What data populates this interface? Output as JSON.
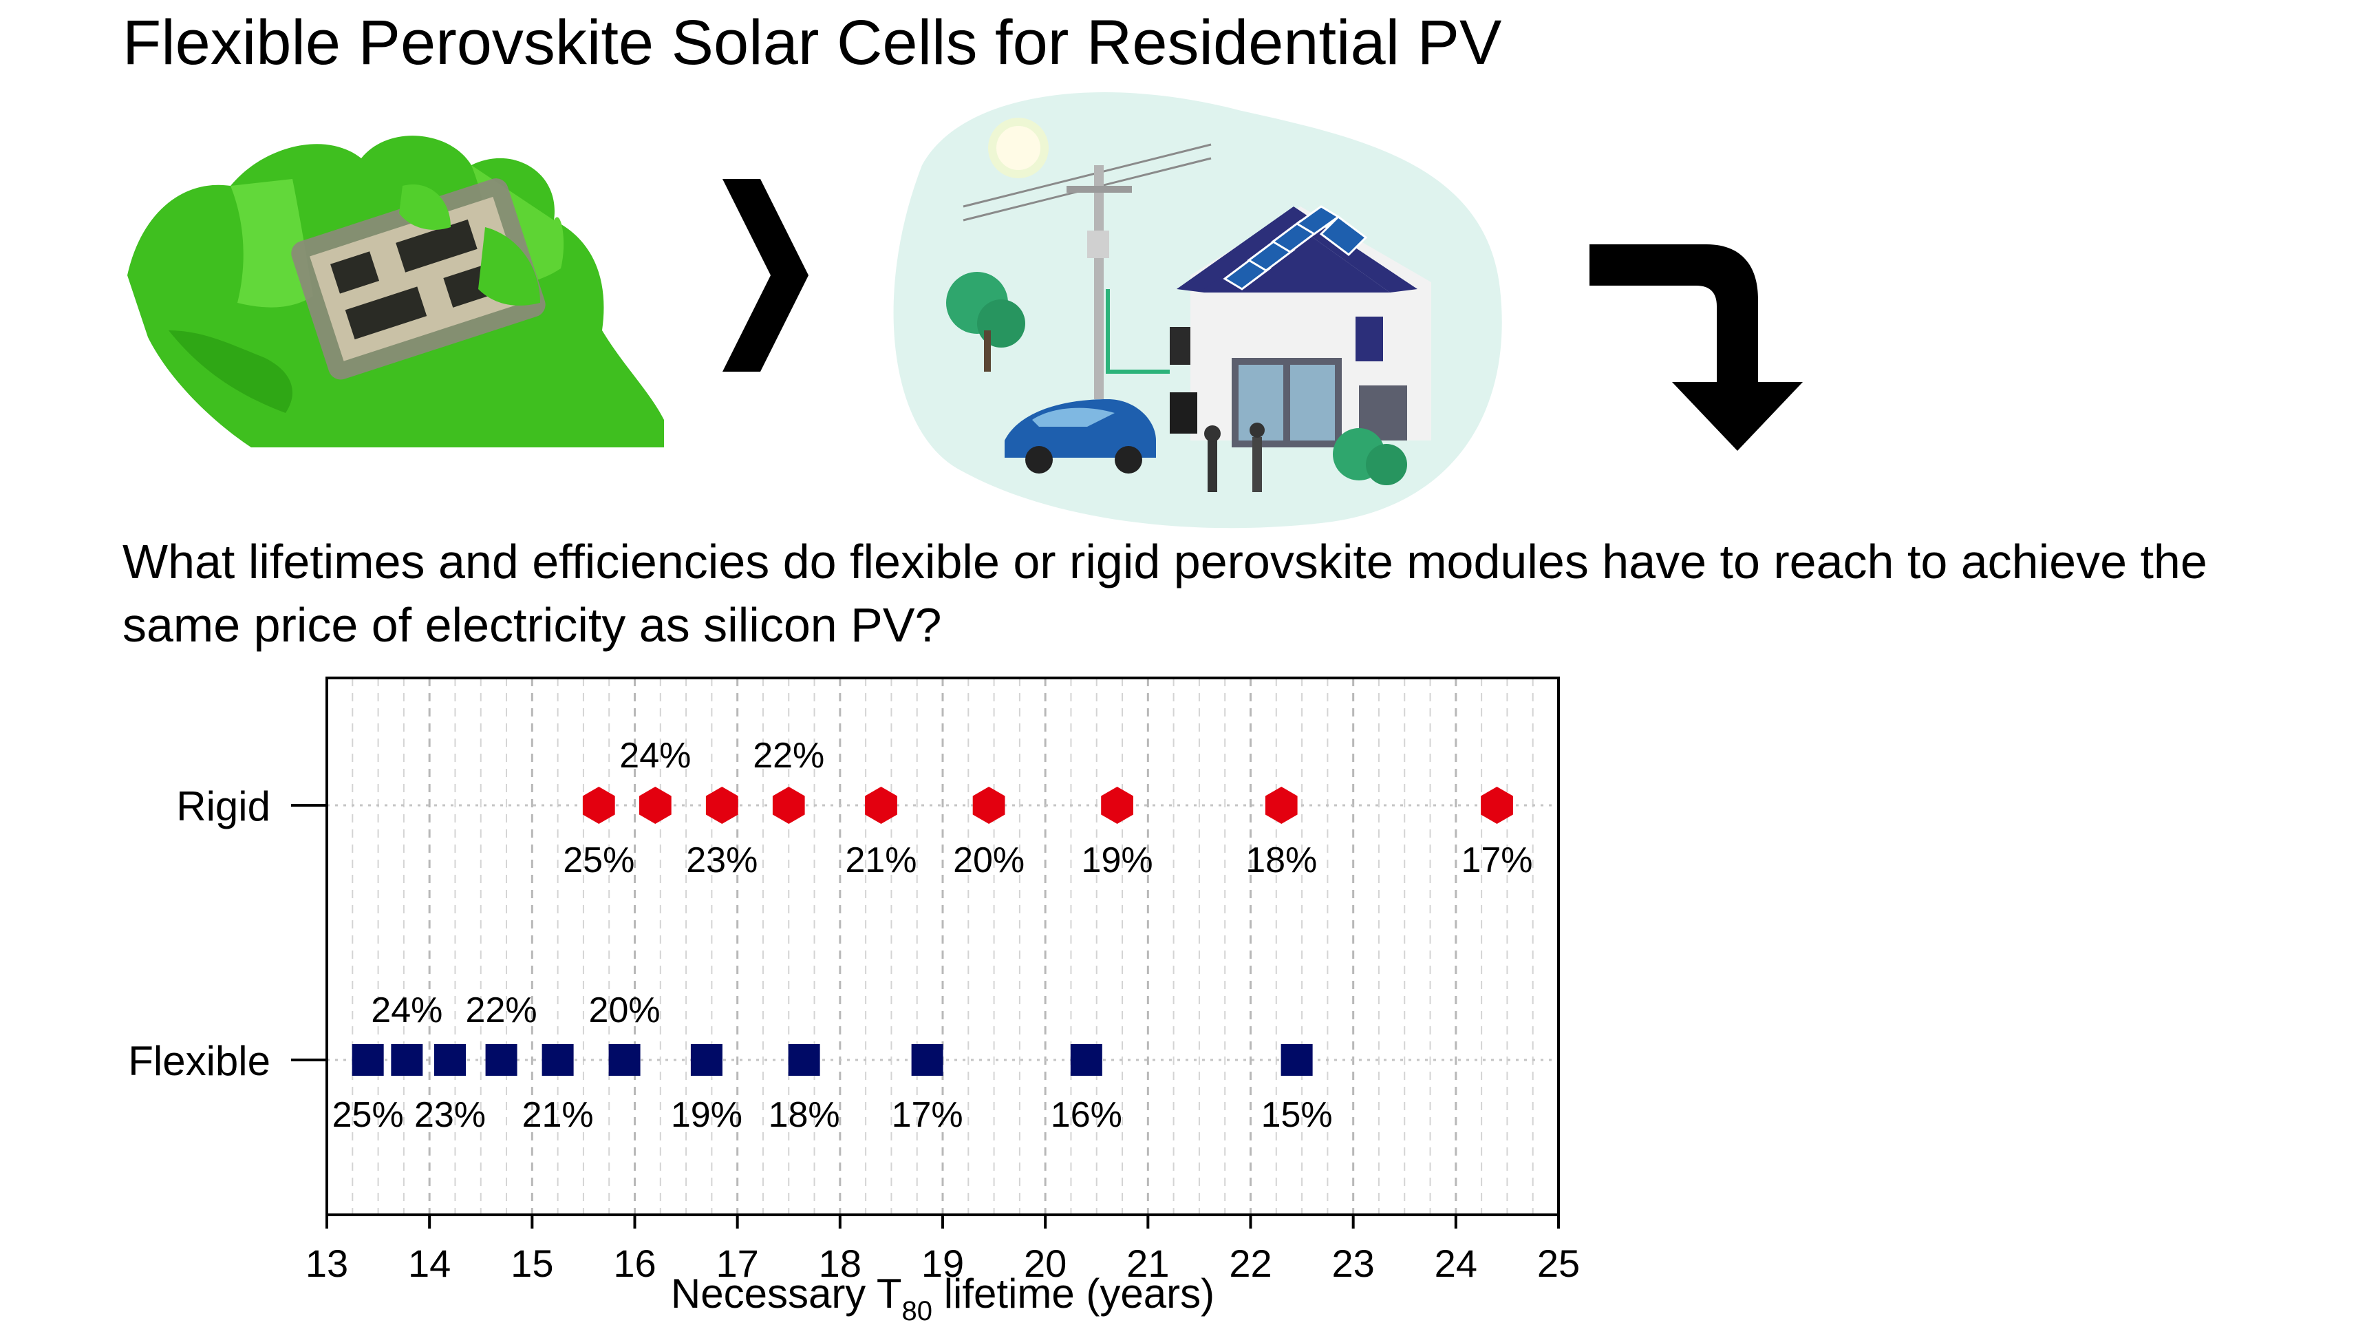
{
  "title": "Flexible Perovskite Solar Cells for Residential PV",
  "question": "What lifetimes and efficiencies do flexible or rigid perovskite modules have to reach to achieve the same price of electricity as silicon PV?",
  "illustrations": [
    {
      "name": "flexible-cell-in-glove",
      "colors": [
        "#3fbf1f",
        "#7ae04a"
      ]
    },
    {
      "name": "chevron-right-icon"
    },
    {
      "name": "house-with-solar-roof",
      "colors": [
        "#dff3ee",
        "#2c2f7a",
        "#1e5fae"
      ]
    },
    {
      "name": "turn-down-arrow-icon"
    }
  ],
  "chart_data": {
    "type": "scatter",
    "xlabel_parts": [
      "Necessary T",
      "80",
      " lifetime (years)"
    ],
    "xlim": [
      13,
      25
    ],
    "x_ticks": [
      "13",
      "14",
      "15",
      "16",
      "17",
      "18",
      "19",
      "20",
      "21",
      "22",
      "23",
      "24",
      "25"
    ],
    "categories": [
      "Rigid",
      "Flexible"
    ],
    "grid": true,
    "series": [
      {
        "name": "Rigid",
        "marker": "hexagon",
        "color": "#e3000f",
        "points": [
          {
            "x": 15.65,
            "label": "25%",
            "label_pos": "below"
          },
          {
            "x": 16.2,
            "label": "24%",
            "label_pos": "above"
          },
          {
            "x": 16.85,
            "label": "23%",
            "label_pos": "below"
          },
          {
            "x": 17.5,
            "label": "22%",
            "label_pos": "above"
          },
          {
            "x": 18.4,
            "label": "21%",
            "label_pos": "below"
          },
          {
            "x": 19.45,
            "label": "20%",
            "label_pos": "below"
          },
          {
            "x": 20.7,
            "label": "19%",
            "label_pos": "below"
          },
          {
            "x": 22.3,
            "label": "18%",
            "label_pos": "below"
          },
          {
            "x": 24.4,
            "label": "17%",
            "label_pos": "below"
          }
        ]
      },
      {
        "name": "Flexible",
        "marker": "square",
        "color": "#000a66",
        "points": [
          {
            "x": 13.4,
            "label": "25%",
            "label_pos": "below"
          },
          {
            "x": 13.78,
            "label": "24%",
            "label_pos": "above"
          },
          {
            "x": 14.2,
            "label": "23%",
            "label_pos": "below"
          },
          {
            "x": 14.7,
            "label": "22%",
            "label_pos": "above"
          },
          {
            "x": 15.25,
            "label": "21%",
            "label_pos": "below"
          },
          {
            "x": 15.9,
            "label": "20%",
            "label_pos": "above"
          },
          {
            "x": 16.7,
            "label": "19%",
            "label_pos": "below"
          },
          {
            "x": 17.65,
            "label": "18%",
            "label_pos": "below"
          },
          {
            "x": 18.85,
            "label": "17%",
            "label_pos": "below"
          },
          {
            "x": 20.4,
            "label": "16%",
            "label_pos": "below"
          },
          {
            "x": 22.45,
            "label": "15%",
            "label_pos": "below"
          }
        ]
      }
    ]
  }
}
